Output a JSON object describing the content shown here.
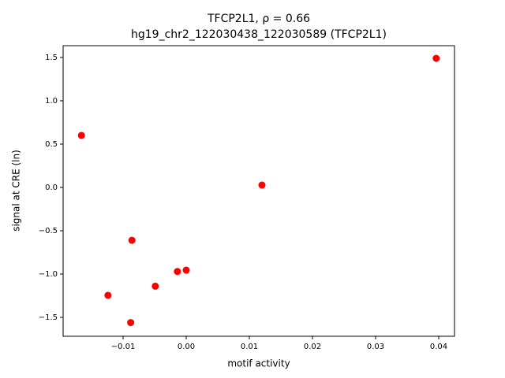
{
  "chart_data": {
    "type": "scatter",
    "title": "TFCP2L1, ρ = 0.66",
    "subtitle": "hg19_chr2_122030438_122030589 (TFCP2L1)",
    "x_label": "motif activity",
    "y_label": "signal at CRE (ln)",
    "color": "#ff0000",
    "x": [
      0.0396,
      -0.0166,
      0.012,
      -0.0086,
      0.0,
      -0.0014,
      -0.0049,
      -0.0124,
      -0.0088
    ],
    "values": [
      1.49,
      0.6,
      0.027,
      -0.61,
      -0.955,
      -0.97,
      -1.14,
      -1.245,
      -1.56
    ],
    "xlim": [
      -0.0195,
      0.0425
    ],
    "ylim": [
      -1.718,
      1.636
    ],
    "xticks": [
      {
        "value": -0.01,
        "label": "−0.01"
      },
      {
        "value": 0,
        "label": "0.00"
      },
      0.01,
      0.02,
      0.03,
      0.04
    ],
    "yticks": [
      {
        "value": -1.5,
        "label": "−1.5"
      },
      {
        "value": -1.0,
        "label": "−1.0"
      },
      {
        "value": -0.5,
        "label": "−0.5"
      },
      {
        "value": 0,
        "label": "0.0"
      },
      0.5,
      {
        "value": 1.0,
        "label": "1.0"
      },
      1.5
    ]
  }
}
